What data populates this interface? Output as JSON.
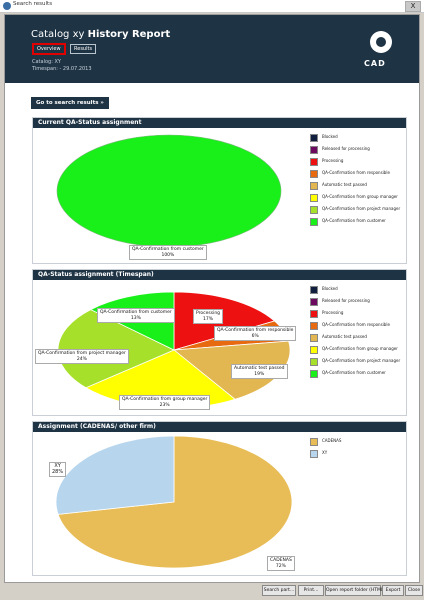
{
  "window": {
    "title": "Search results",
    "close_label": "X"
  },
  "header": {
    "catalog_prefix": "Catalog xy",
    "report_title": "History Report",
    "tabs": [
      {
        "label": "Overview",
        "active": true
      },
      {
        "label": "Results",
        "active": false
      }
    ],
    "catalog_line": "Catalog: XY",
    "timespan_line": "Timespan: -   29.07.2013",
    "logo_text": "CAD"
  },
  "go_button": {
    "label": "Go to search results »"
  },
  "sections": [
    {
      "title": "Current QA-Status assignment"
    },
    {
      "title": "QA-Status assignment (Timespan)"
    },
    {
      "title": "Assignment (CADENAS/ other firm)"
    }
  ],
  "legend_status": [
    {
      "label": "Blocked",
      "color": "#0f1f3d"
    },
    {
      "label": "Released for processing",
      "color": "#6b0a5e"
    },
    {
      "label": "Processing",
      "color": "#ee1111"
    },
    {
      "label": "QA-Confirmation from responsible",
      "color": "#e86a10"
    },
    {
      "label": "Automatic test passed",
      "color": "#e2b650"
    },
    {
      "label": "QA-Confirmation from group manager",
      "color": "#ffff00"
    },
    {
      "label": "QA-Confirmation from project manager",
      "color": "#a6e02a"
    },
    {
      "label": "QA-Confirmation from customer",
      "color": "#19f019"
    }
  ],
  "legend_assignment": [
    {
      "label": "CADENAS",
      "color": "#e8bd58"
    },
    {
      "label": "XY",
      "color": "#b7d6ee"
    }
  ],
  "chart_data": [
    {
      "type": "pie",
      "title": "Current QA-Status assignment",
      "slices": [
        {
          "label": "QA-Confirmation from customer",
          "value": 100,
          "value_text": "100%",
          "color": "#19f019"
        }
      ]
    },
    {
      "type": "pie",
      "title": "QA-Status assignment (Timespan)",
      "slices": [
        {
          "label": "Processing",
          "value": 17,
          "value_text": "17%",
          "color": "#ee1111"
        },
        {
          "label": "QA-Confirmation from responsible",
          "value": 6,
          "value_text": "6%",
          "color": "#e86a10"
        },
        {
          "label": "Automatic test passed",
          "value": 19,
          "value_text": "19%",
          "color": "#e2b650"
        },
        {
          "label": "QA-Confirmation from group manager",
          "value": 23,
          "value_text": "23%",
          "color": "#ffff00"
        },
        {
          "label": "QA-Confirmation from project manager",
          "value": 24,
          "value_text": "24%",
          "color": "#a6e02a"
        },
        {
          "label": "QA-Confirmation from customer",
          "value": 13,
          "value_text": "13%",
          "color": "#19f019"
        }
      ]
    },
    {
      "type": "pie",
      "title": "Assignment (CADENAS/ other firm)",
      "slices": [
        {
          "label": "CADENAS",
          "value": 72,
          "value_text": "72%",
          "color": "#e8bd58"
        },
        {
          "label": "XY",
          "value": 28,
          "value_text": "28%",
          "color": "#b7d6ee"
        }
      ]
    }
  ],
  "bottom_buttons": [
    {
      "label": "Search part..."
    },
    {
      "label": "Print..."
    },
    {
      "label": "Open report folder (HTML)"
    },
    {
      "label": "Export"
    },
    {
      "label": "Close"
    }
  ]
}
